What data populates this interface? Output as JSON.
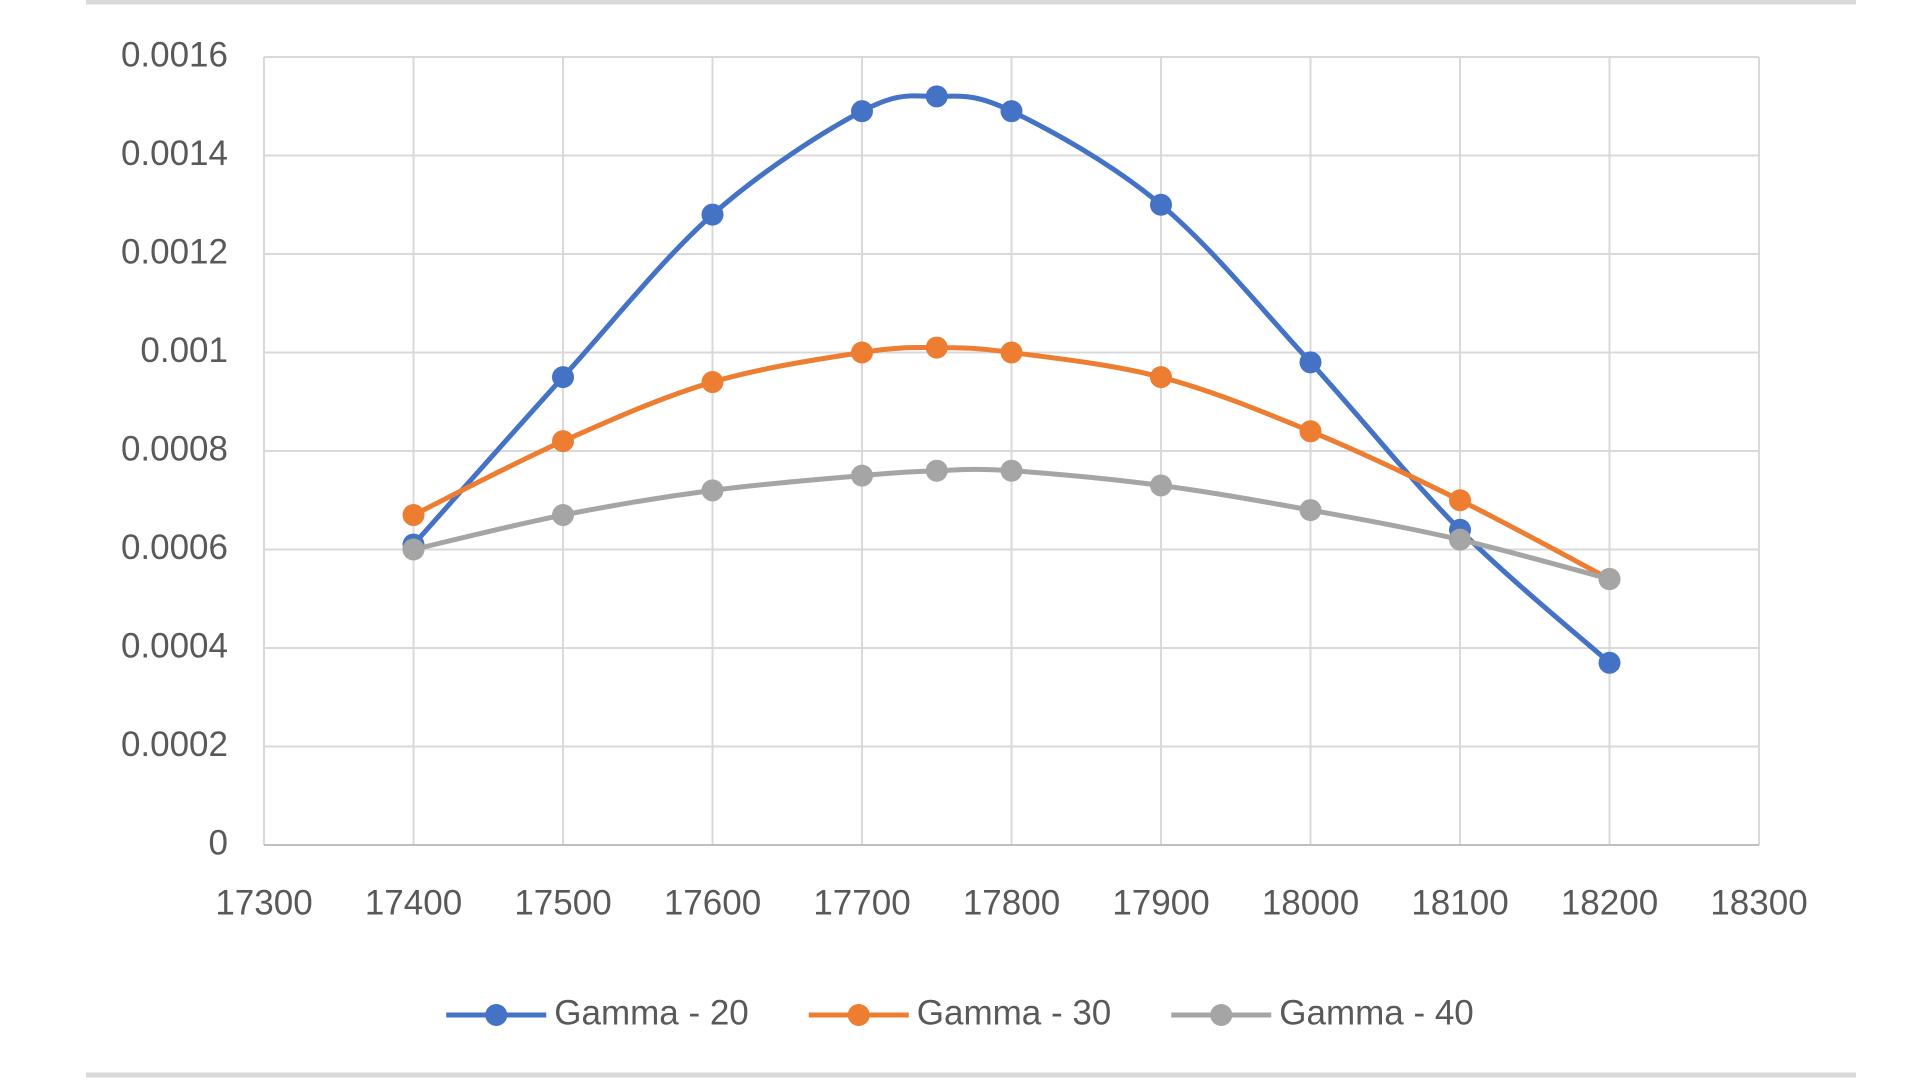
{
  "chart_data": {
    "type": "line",
    "x": [
      17400,
      17500,
      17600,
      17700,
      17750,
      17800,
      17900,
      18000,
      18100,
      18200
    ],
    "series": [
      {
        "name": "Gamma - 20",
        "color": "#4472c4",
        "values": [
          0.00061,
          0.00095,
          0.00128,
          0.00149,
          0.00152,
          0.00149,
          0.0013,
          0.00098,
          0.00064,
          0.00037
        ]
      },
      {
        "name": "Gamma - 30",
        "color": "#ed7d31",
        "values": [
          0.00067,
          0.00082,
          0.00094,
          0.001,
          0.00101,
          0.001,
          0.00095,
          0.00084,
          0.0007,
          0.00054
        ]
      },
      {
        "name": "Gamma - 40",
        "color": "#a5a5a5",
        "values": [
          0.0006,
          0.00067,
          0.00072,
          0.00075,
          0.00076,
          0.00076,
          0.00073,
          0.00068,
          0.00062,
          0.00054
        ]
      }
    ],
    "xlim": [
      17300,
      18300
    ],
    "xticks": [
      17300,
      17400,
      17500,
      17600,
      17700,
      17800,
      17900,
      18000,
      18100,
      18200,
      18300
    ],
    "ylim": [
      0,
      0.0016
    ],
    "yticks": [
      0,
      0.0002,
      0.0004,
      0.0006,
      0.0008,
      0.001,
      0.0012,
      0.0014,
      0.0016
    ],
    "grid": true,
    "smooth": true,
    "markers": true,
    "legend": "bottom"
  }
}
